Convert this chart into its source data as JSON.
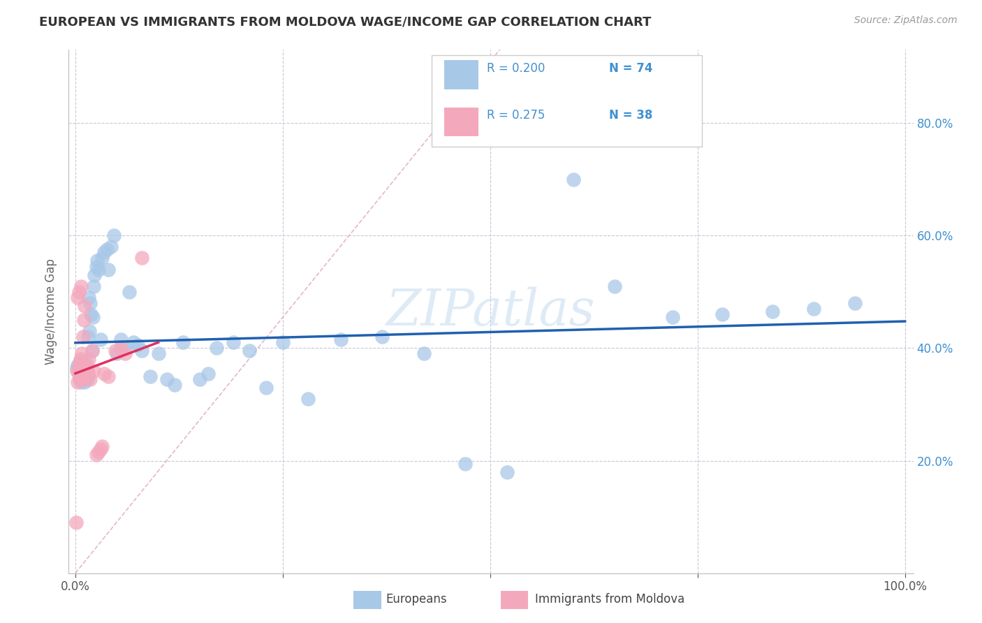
{
  "title": "EUROPEAN VS IMMIGRANTS FROM MOLDOVA WAGE/INCOME GAP CORRELATION CHART",
  "source": "Source: ZipAtlas.com",
  "ylabel": "Wage/Income Gap",
  "legend_label1": "Europeans",
  "legend_label2": "Immigrants from Moldova",
  "r_blue": 0.2,
  "n_blue": 74,
  "r_pink": 0.275,
  "n_pink": 38,
  "blue_color": "#a8c8e8",
  "pink_color": "#f4a8bc",
  "blue_line_color": "#2060b0",
  "pink_line_color": "#e03060",
  "diag_color": "#e0b0c0",
  "background_color": "#ffffff",
  "grid_color": "#c8c8d8",
  "ytick_color": "#4090d0",
  "ytick_labels": [
    "20.0%",
    "40.0%",
    "60.0%",
    "80.0%"
  ],
  "ytick_values": [
    0.2,
    0.4,
    0.6,
    0.8
  ],
  "blue_points_x": [
    0.002,
    0.003,
    0.004,
    0.005,
    0.005,
    0.006,
    0.006,
    0.007,
    0.007,
    0.008,
    0.008,
    0.009,
    0.009,
    0.01,
    0.01,
    0.011,
    0.011,
    0.012,
    0.012,
    0.013,
    0.013,
    0.014,
    0.015,
    0.015,
    0.016,
    0.017,
    0.018,
    0.019,
    0.02,
    0.021,
    0.022,
    0.023,
    0.025,
    0.026,
    0.028,
    0.03,
    0.032,
    0.035,
    0.038,
    0.04,
    0.043,
    0.046,
    0.05,
    0.055,
    0.06,
    0.065,
    0.07,
    0.075,
    0.08,
    0.09,
    0.1,
    0.11,
    0.12,
    0.13,
    0.15,
    0.16,
    0.17,
    0.19,
    0.21,
    0.23,
    0.25,
    0.28,
    0.32,
    0.37,
    0.42,
    0.47,
    0.52,
    0.6,
    0.65,
    0.72,
    0.78,
    0.84,
    0.89,
    0.94
  ],
  "blue_points_y": [
    0.365,
    0.37,
    0.355,
    0.345,
    0.36,
    0.35,
    0.375,
    0.34,
    0.37,
    0.355,
    0.365,
    0.345,
    0.36,
    0.355,
    0.37,
    0.34,
    0.365,
    0.35,
    0.355,
    0.36,
    0.375,
    0.345,
    0.35,
    0.42,
    0.49,
    0.43,
    0.48,
    0.46,
    0.395,
    0.455,
    0.51,
    0.53,
    0.545,
    0.555,
    0.54,
    0.415,
    0.56,
    0.57,
    0.575,
    0.54,
    0.58,
    0.6,
    0.39,
    0.415,
    0.4,
    0.5,
    0.41,
    0.405,
    0.395,
    0.35,
    0.39,
    0.345,
    0.335,
    0.41,
    0.345,
    0.355,
    0.4,
    0.41,
    0.395,
    0.33,
    0.41,
    0.31,
    0.415,
    0.42,
    0.39,
    0.195,
    0.18,
    0.7,
    0.51,
    0.455,
    0.46,
    0.465,
    0.47,
    0.48
  ],
  "pink_points_x": [
    0.001,
    0.002,
    0.003,
    0.003,
    0.004,
    0.004,
    0.005,
    0.005,
    0.006,
    0.006,
    0.007,
    0.007,
    0.008,
    0.008,
    0.009,
    0.009,
    0.01,
    0.01,
    0.011,
    0.011,
    0.012,
    0.013,
    0.014,
    0.015,
    0.016,
    0.018,
    0.02,
    0.022,
    0.025,
    0.028,
    0.03,
    0.032,
    0.035,
    0.04,
    0.048,
    0.055,
    0.06,
    0.08
  ],
  "pink_points_y": [
    0.09,
    0.36,
    0.34,
    0.49,
    0.365,
    0.5,
    0.35,
    0.375,
    0.345,
    0.38,
    0.36,
    0.51,
    0.355,
    0.39,
    0.365,
    0.42,
    0.345,
    0.45,
    0.355,
    0.475,
    0.37,
    0.365,
    0.36,
    0.355,
    0.38,
    0.345,
    0.395,
    0.36,
    0.21,
    0.215,
    0.22,
    0.225,
    0.355,
    0.35,
    0.395,
    0.4,
    0.39,
    0.56
  ]
}
